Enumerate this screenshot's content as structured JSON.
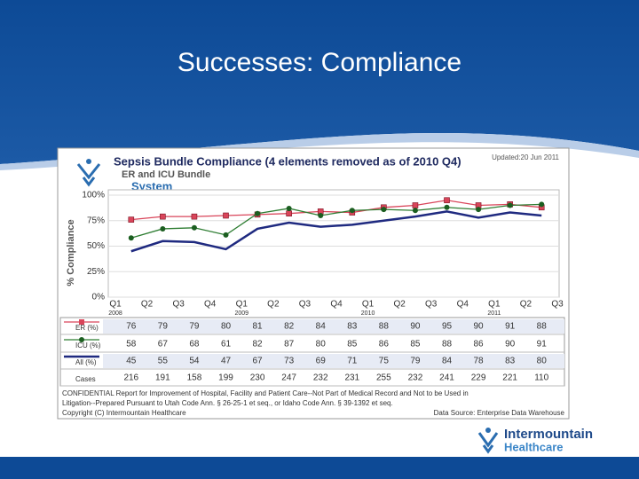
{
  "slide_title": "Successes: Compliance",
  "logo": [
    "Intermountain",
    "Healthcare"
  ],
  "chart_data": {
    "type": "line",
    "title": "Sepsis Bundle Compliance (4 elements removed as of 2010 Q4)",
    "subtitle": "ER and ICU Bundle",
    "scope": "System",
    "updated": "Updated:20 Jun 2011",
    "y_label": "% Compliance",
    "ylim": [
      0,
      100
    ],
    "yticks": [
      {
        "value": 0,
        "label": "0%"
      },
      {
        "value": 25,
        "label": "25%"
      },
      {
        "value": 50,
        "label": "50%"
      },
      {
        "value": 75,
        "label": "75%"
      },
      {
        "value": 100,
        "label": "100%"
      }
    ],
    "grid": true,
    "x_axis_labels": [
      "Q1",
      "Q2",
      "Q3",
      "Q4",
      "Q1",
      "Q2",
      "Q3",
      "Q4",
      "Q1",
      "Q2",
      "Q3",
      "Q4",
      "Q1",
      "Q2",
      "Q3"
    ],
    "year_labels": [
      "2008",
      null,
      null,
      null,
      "2009",
      null,
      null,
      null,
      "2010",
      null,
      null,
      null,
      "2011",
      null,
      null
    ],
    "series": [
      {
        "name": "ER (%)",
        "color": "#d9455a",
        "marker": "square",
        "values": [
          76,
          79,
          79,
          80,
          81,
          82,
          84,
          83,
          88,
          90,
          95,
          90,
          91,
          88
        ]
      },
      {
        "name": "ICU (%)",
        "color": "#2e7d32",
        "marker": "circle",
        "values": [
          58,
          67,
          68,
          61,
          82,
          87,
          80,
          85,
          86,
          85,
          88,
          86,
          90,
          91
        ]
      },
      {
        "name": "All (%)",
        "color": "#1f2a80",
        "marker": "none",
        "values": [
          45,
          55,
          54,
          47,
          67,
          73,
          69,
          71,
          75,
          79,
          84,
          78,
          83,
          80
        ]
      }
    ],
    "cases": {
      "name": "Cases",
      "values": [
        216,
        191,
        158,
        199,
        230,
        247,
        232,
        231,
        255,
        232,
        241,
        229,
        221,
        110
      ]
    },
    "footer": [
      "CONFIDENTIAL Report for Improvement of Hospital, Facility and Patient Care--Not Part of Medical Record and Not to be Used in",
      "Litigation--Prepared Pursuant to Utah Code Ann. § 26-25-1 et seq., or Idaho Code Ann. § 39-1392 et seq.",
      "Copyright (C) Intermountain Healthcare"
    ],
    "source": "Data Source: Enterprise Data Warehouse"
  }
}
